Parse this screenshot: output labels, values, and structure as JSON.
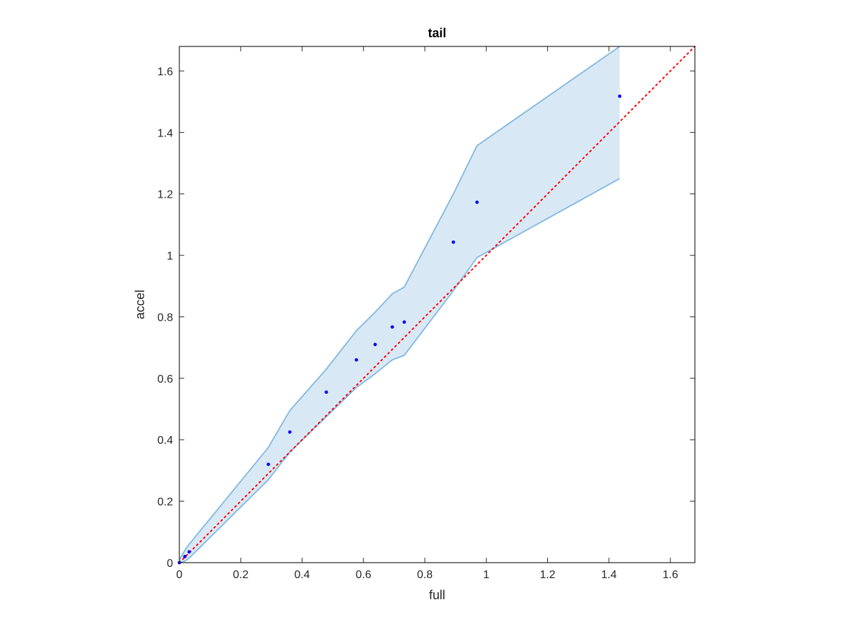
{
  "chart_data": {
    "type": "scatter",
    "title": "tail",
    "xlabel": "full",
    "ylabel": "accel",
    "xlim": [
      0,
      1.68
    ],
    "ylim": [
      0,
      1.68
    ],
    "xticks": [
      "0",
      "0.2",
      "0.4",
      "0.6",
      "0.8",
      "1",
      "1.2",
      "1.4",
      "1.6"
    ],
    "yticks": [
      "0",
      "0.2",
      "0.4",
      "0.6",
      "0.8",
      "1",
      "1.2",
      "1.4",
      "1.6"
    ],
    "grid": false,
    "series": [
      {
        "kind": "points",
        "color": "#0000ff",
        "x": [
          0.0,
          0.018,
          0.032,
          0.29,
          0.36,
          0.479,
          0.577,
          0.638,
          0.694,
          0.733,
          0.893,
          0.97,
          1.435
        ],
        "y": [
          0.0,
          0.02,
          0.035,
          0.32,
          0.425,
          0.555,
          0.66,
          0.71,
          0.767,
          0.783,
          1.043,
          1.173,
          1.518
        ]
      },
      {
        "kind": "band",
        "fill": "#d9e8f5",
        "stroke": "#7fb8e0",
        "x": [
          0.0,
          0.018,
          0.032,
          0.29,
          0.36,
          0.479,
          0.577,
          0.638,
          0.694,
          0.733,
          0.893,
          0.97,
          1.435
        ],
        "upper": [
          0.01,
          0.04,
          0.06,
          0.375,
          0.495,
          0.63,
          0.755,
          0.815,
          0.875,
          0.897,
          1.2,
          1.357,
          1.68
        ],
        "lower": [
          0.0,
          0.005,
          0.015,
          0.27,
          0.36,
          0.475,
          0.57,
          0.615,
          0.66,
          0.675,
          0.885,
          0.993,
          1.25
        ]
      },
      {
        "kind": "reference-line",
        "color": "#ff0000",
        "style": "dotted",
        "x": [
          0,
          1.68
        ],
        "y": [
          0,
          1.68
        ]
      }
    ]
  }
}
